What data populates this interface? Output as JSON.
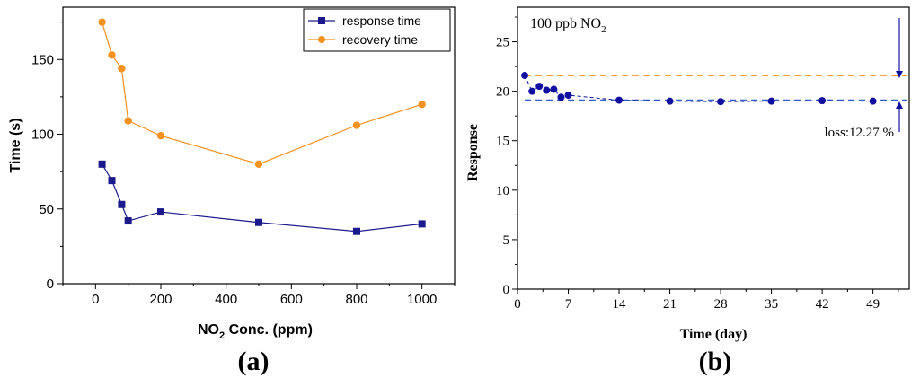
{
  "chart_data": [
    {
      "type": "line",
      "panel_label": "(a)",
      "xlabel": "NO",
      "xlabel_sub": "2",
      "xlabel_rest": " Conc. (ppm)",
      "ylabel": "Time (s)",
      "xlim": [
        -100,
        1100
      ],
      "ylim": [
        0,
        185
      ],
      "xticks": [
        0,
        200,
        400,
        600,
        800,
        1000
      ],
      "yticks": [
        0,
        50,
        100,
        150
      ],
      "x": [
        20,
        50,
        80,
        100,
        200,
        500,
        800,
        1000
      ],
      "series": [
        {
          "name": "response time",
          "marker": "square",
          "color": "#1a1a8c",
          "values": [
            80,
            69,
            53,
            42,
            48,
            41,
            35,
            40
          ]
        },
        {
          "name": "recovery time",
          "marker": "circle",
          "color": "#f5921e",
          "values": [
            175,
            153,
            144,
            109,
            99,
            80,
            106,
            120
          ]
        }
      ],
      "legend": "top-right"
    },
    {
      "type": "scatter",
      "panel_label": "(b)",
      "title": "100 ppb NO",
      "title_sub": "2",
      "xlabel": "Time (day)",
      "ylabel": "Response",
      "xlim": [
        0,
        54
      ],
      "ylim": [
        0,
        28.5
      ],
      "xticks": [
        0,
        7,
        14,
        21,
        28,
        35,
        42,
        49
      ],
      "yticks": [
        0,
        5,
        10,
        15,
        20,
        25
      ],
      "series": [
        {
          "name": "response",
          "color": "#1010a0",
          "x": [
            1,
            2,
            3,
            4,
            5,
            6,
            7,
            14,
            21,
            28,
            35,
            42,
            49
          ],
          "values": [
            21.6,
            20.0,
            20.5,
            20.1,
            20.2,
            19.4,
            19.6,
            19.1,
            19.0,
            18.95,
            19.0,
            19.05,
            19.0
          ]
        }
      ],
      "reference_lines": [
        {
          "y": 21.6,
          "color": "#f5921e"
        },
        {
          "y": 19.1,
          "color": "#2a5fbf"
        }
      ],
      "annotation": "loss:12.27 %"
    }
  ]
}
